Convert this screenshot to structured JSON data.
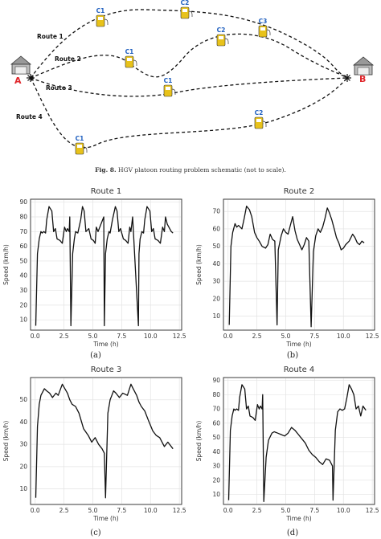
{
  "schematic": {
    "origin_label": "A",
    "destination_label": "B",
    "routes": [
      {
        "name": "Route 1",
        "stations": [
          "C1",
          "C2",
          "C3"
        ]
      },
      {
        "name": "Route 2",
        "stations": [
          "C1",
          "C2"
        ]
      },
      {
        "name": "Route 3",
        "stations": [
          "C1"
        ]
      },
      {
        "name": "Route 4",
        "stations": [
          "C1",
          "C2"
        ]
      }
    ]
  },
  "caption": {
    "number": "Fig. 8.",
    "text": "HGV platoon routing problem schematic (not to scale)."
  },
  "subfigure_labels": [
    "(a)",
    "(b)",
    "(c)",
    "(d)"
  ],
  "chart_data": [
    {
      "type": "line",
      "title": "Route 1",
      "xlabel": "Time (h)",
      "ylabel": "Speed (km/h)",
      "xlim": [
        -0.4,
        12.7
      ],
      "ylim": [
        3,
        92
      ],
      "xticks": [
        0.0,
        2.5,
        5.0,
        7.5,
        10.0,
        12.5
      ],
      "yticks": [
        10,
        20,
        30,
        40,
        50,
        60,
        70,
        80,
        90
      ],
      "grid": true,
      "x": [
        0.05,
        0.2,
        0.35,
        0.5,
        0.6,
        0.75,
        0.9,
        1.0,
        1.2,
        1.45,
        1.6,
        1.75,
        1.9,
        2.15,
        2.35,
        2.55,
        2.7,
        2.8,
        2.95,
        3.0,
        3.1,
        3.25,
        3.4,
        3.5,
        3.7,
        3.95,
        4.1,
        4.25,
        4.4,
        4.65,
        4.85,
        5.05,
        5.2,
        5.3,
        5.45,
        5.95,
        6.0,
        6.1,
        6.25,
        6.4,
        6.5,
        6.7,
        6.95,
        7.1,
        7.25,
        7.4,
        7.65,
        7.85,
        8.05,
        8.2,
        8.3,
        8.45,
        8.95,
        9.0,
        9.1,
        9.25,
        9.4,
        9.5,
        9.7,
        9.95,
        10.1,
        10.25,
        10.4,
        10.65,
        10.85,
        11.05,
        11.2,
        11.3,
        11.45,
        11.8,
        11.95
      ],
      "y": [
        6,
        55,
        65,
        70,
        69,
        70,
        69,
        78,
        87,
        84,
        70,
        72,
        65,
        64,
        62,
        73,
        70,
        72,
        70,
        80,
        6,
        55,
        65,
        70,
        69,
        78,
        87,
        84,
        70,
        72,
        65,
        64,
        62,
        73,
        70,
        80,
        6,
        55,
        65,
        70,
        69,
        78,
        87,
        84,
        70,
        72,
        65,
        64,
        62,
        73,
        70,
        80,
        6,
        55,
        65,
        70,
        69,
        78,
        87,
        84,
        70,
        72,
        65,
        64,
        62,
        73,
        70,
        80,
        75,
        70,
        69
      ]
    },
    {
      "type": "line",
      "title": "Route 2",
      "xlabel": "Time (h)",
      "ylabel": "Speed (km/h)",
      "xlim": [
        -0.4,
        12.7
      ],
      "ylim": [
        2,
        77
      ],
      "xticks": [
        0.0,
        2.5,
        5.0,
        7.5,
        10.0,
        12.5
      ],
      "yticks": [
        10,
        20,
        30,
        40,
        50,
        60,
        70
      ],
      "grid": true,
      "x": [
        0.1,
        0.25,
        0.4,
        0.6,
        0.75,
        0.9,
        1.2,
        1.4,
        1.6,
        1.85,
        2.05,
        2.3,
        2.5,
        2.7,
        2.95,
        3.25,
        3.45,
        3.65,
        3.85,
        4.05,
        4.25,
        4.35,
        4.6,
        4.8,
        5.0,
        5.2,
        5.4,
        5.6,
        5.8,
        6.0,
        6.2,
        6.4,
        6.6,
        6.8,
        7.0,
        7.2,
        7.4,
        7.6,
        7.8,
        8.0,
        8.2,
        8.4,
        8.6,
        8.8,
        9.0,
        9.2,
        9.4,
        9.6,
        9.8,
        10.0,
        10.2,
        10.5,
        10.8,
        11.0,
        11.2,
        11.4,
        11.6,
        11.8
      ],
      "y": [
        5,
        50,
        58,
        63,
        61,
        62,
        60,
        66,
        73,
        71,
        67,
        58,
        55,
        53,
        50,
        49,
        51,
        57,
        54,
        53,
        5,
        48,
        56,
        60,
        58,
        57,
        62,
        67,
        59,
        54,
        51,
        48,
        51,
        55,
        53,
        4,
        47,
        56,
        60,
        58,
        61,
        66,
        72,
        69,
        65,
        60,
        55,
        52,
        48,
        49,
        51,
        53,
        57,
        55,
        52,
        51,
        53,
        52
      ]
    },
    {
      "type": "line",
      "title": "Route 3",
      "xlabel": "Time (h)",
      "ylabel": "Speed (km/h)",
      "xlim": [
        -0.4,
        12.7
      ],
      "ylim": [
        3,
        60
      ],
      "xticks": [
        0.0,
        2.5,
        5.0,
        7.5,
        10.0,
        12.5
      ],
      "yticks": [
        10,
        20,
        30,
        40,
        50
      ],
      "grid": true,
      "x": [
        0.05,
        0.2,
        0.35,
        0.5,
        0.8,
        1.0,
        1.25,
        1.5,
        1.8,
        2.0,
        2.35,
        2.8,
        3.0,
        3.2,
        3.5,
        3.8,
        4.2,
        4.6,
        4.9,
        5.2,
        5.5,
        5.8,
        6.0,
        6.1,
        6.3,
        6.5,
        6.8,
        7.0,
        7.3,
        7.6,
        8.0,
        8.3,
        8.5,
        8.8,
        9.0,
        9.2,
        9.5,
        9.8,
        10.2,
        10.5,
        10.8,
        11.2,
        11.5,
        11.95
      ],
      "y": [
        6,
        38,
        48,
        52,
        55,
        54,
        53,
        51,
        53,
        52,
        57,
        53,
        50,
        48,
        47,
        44,
        37,
        34,
        31,
        33,
        30,
        28,
        26,
        6,
        44,
        50,
        54,
        53,
        51,
        53,
        52,
        57,
        55,
        52,
        49,
        47,
        45,
        41,
        36,
        34,
        33,
        29,
        31,
        28
      ]
    },
    {
      "type": "line",
      "title": "Route 4",
      "xlabel": "Time (h)",
      "ylabel": "Speed (km/h)",
      "xlim": [
        -0.4,
        12.7
      ],
      "ylim": [
        3,
        92
      ],
      "xticks": [
        0.0,
        2.5,
        5.0,
        7.5,
        10.0,
        12.5
      ],
      "yticks": [
        10,
        20,
        30,
        40,
        50,
        60,
        70,
        80,
        90
      ],
      "grid": true,
      "x": [
        0.05,
        0.2,
        0.35,
        0.5,
        0.6,
        0.75,
        0.9,
        1.0,
        1.2,
        1.45,
        1.6,
        1.75,
        1.9,
        2.15,
        2.35,
        2.55,
        2.7,
        2.8,
        2.95,
        3.0,
        3.1,
        3.3,
        3.5,
        3.8,
        4.0,
        4.3,
        4.6,
        4.9,
        5.2,
        5.5,
        5.8,
        6.1,
        6.4,
        6.7,
        7.0,
        7.3,
        7.6,
        7.9,
        8.2,
        8.5,
        8.8,
        9.05,
        9.1,
        9.3,
        9.5,
        9.7,
        9.9,
        10.1,
        10.3,
        10.5,
        10.7,
        10.9,
        11.1,
        11.3,
        11.5,
        11.7,
        11.95
      ],
      "y": [
        6,
        55,
        65,
        70,
        69,
        70,
        69,
        78,
        87,
        84,
        70,
        72,
        65,
        64,
        62,
        73,
        70,
        72,
        70,
        80,
        5,
        36,
        48,
        53,
        54,
        53,
        52,
        51,
        53,
        57,
        55,
        52,
        49,
        46,
        41,
        38,
        36,
        33,
        31,
        35,
        34,
        30,
        6,
        55,
        68,
        70,
        69,
        70,
        78,
        87,
        84,
        80,
        70,
        72,
        65,
        72,
        69
      ]
    }
  ]
}
